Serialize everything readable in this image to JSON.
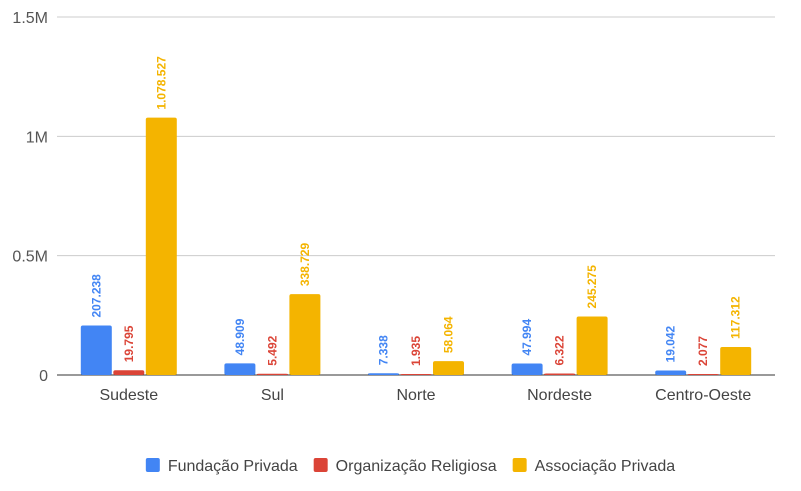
{
  "chart_data": {
    "type": "bar",
    "categories": [
      "Sudeste",
      "Sul",
      "Norte",
      "Nordeste",
      "Centro-Oeste"
    ],
    "series": [
      {
        "name": "Fundação Privada",
        "color": "#4285f4",
        "values": [
          207238,
          48909,
          7338,
          47994,
          19042
        ],
        "labels": [
          "207.238",
          "48.909",
          "7.338",
          "47.994",
          "19.042"
        ]
      },
      {
        "name": "Organização Religiosa",
        "color": "#db4437",
        "values": [
          19795,
          5492,
          1935,
          6322,
          2077
        ],
        "labels": [
          "19.795",
          "5.492",
          "1.935",
          "6.322",
          "2.077"
        ]
      },
      {
        "name": "Associação Privada",
        "color": "#f4b400",
        "values": [
          1078527,
          338729,
          58064,
          245275,
          117312
        ],
        "labels": [
          "1.078.527",
          "338.729",
          "58.064",
          "245.275",
          "117.312"
        ]
      }
    ],
    "ylim": [
      0,
      1500000
    ],
    "yticks": [
      {
        "value": 0,
        "label": "0"
      },
      {
        "value": 500000,
        "label": "0.5M"
      },
      {
        "value": 1000000,
        "label": "1M"
      },
      {
        "value": 1500000,
        "label": "1.5M"
      }
    ],
    "grid": true,
    "legend_position": "bottom"
  }
}
